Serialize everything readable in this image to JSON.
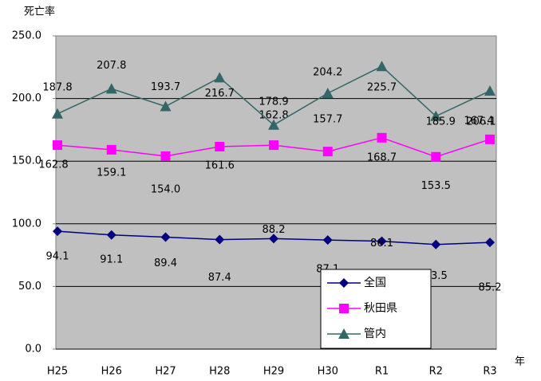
{
  "chart_data": {
    "type": "line",
    "y_label": "死亡率",
    "x_label": "年",
    "categories": [
      "H25",
      "H26",
      "H27",
      "H28",
      "H29",
      "H30",
      "R1",
      "R2",
      "R3"
    ],
    "ylim": [
      0,
      250
    ],
    "yticks": [
      {
        "value": 0,
        "label": "0.0"
      },
      {
        "value": 50,
        "label": "50.0"
      },
      {
        "value": 100,
        "label": "100.0"
      },
      {
        "value": 150,
        "label": "150.0"
      },
      {
        "value": 200,
        "label": "200.0"
      },
      {
        "value": 250,
        "label": "250.0"
      }
    ],
    "grid": true,
    "legend": "lower right",
    "series": [
      {
        "name": "全国",
        "color": "#000080",
        "marker": "diamond",
        "values": [
          94.1,
          91.1,
          89.4,
          87.4,
          88.2,
          87.1,
          86.1,
          83.5,
          85.2
        ],
        "value_labels": [
          "94.1",
          "91.1",
          "89.4",
          "87.4",
          "88.2",
          "87.1",
          "86.1",
          "83.5",
          "85.2"
        ]
      },
      {
        "name": "秋田県",
        "color": "#ff00ff",
        "marker": "square",
        "values": [
          162.8,
          159.1,
          154.0,
          161.6,
          162.8,
          157.7,
          168.7,
          153.5,
          167.4
        ],
        "value_labels": [
          "162.8",
          "159.1",
          "154.0",
          "161.6",
          "162.8",
          "157.7",
          "168.7",
          "153.5",
          "167.4"
        ]
      },
      {
        "name": "管内",
        "color": "#336666",
        "marker": "triangle",
        "values": [
          187.8,
          207.8,
          193.7,
          216.7,
          178.9,
          204.2,
          225.7,
          185.9,
          206.1
        ],
        "value_labels": [
          "187.8",
          "207.8",
          "193.7",
          "216.7",
          "178.9",
          "204.2",
          "225.7",
          "185.9",
          "206.1"
        ]
      }
    ]
  }
}
